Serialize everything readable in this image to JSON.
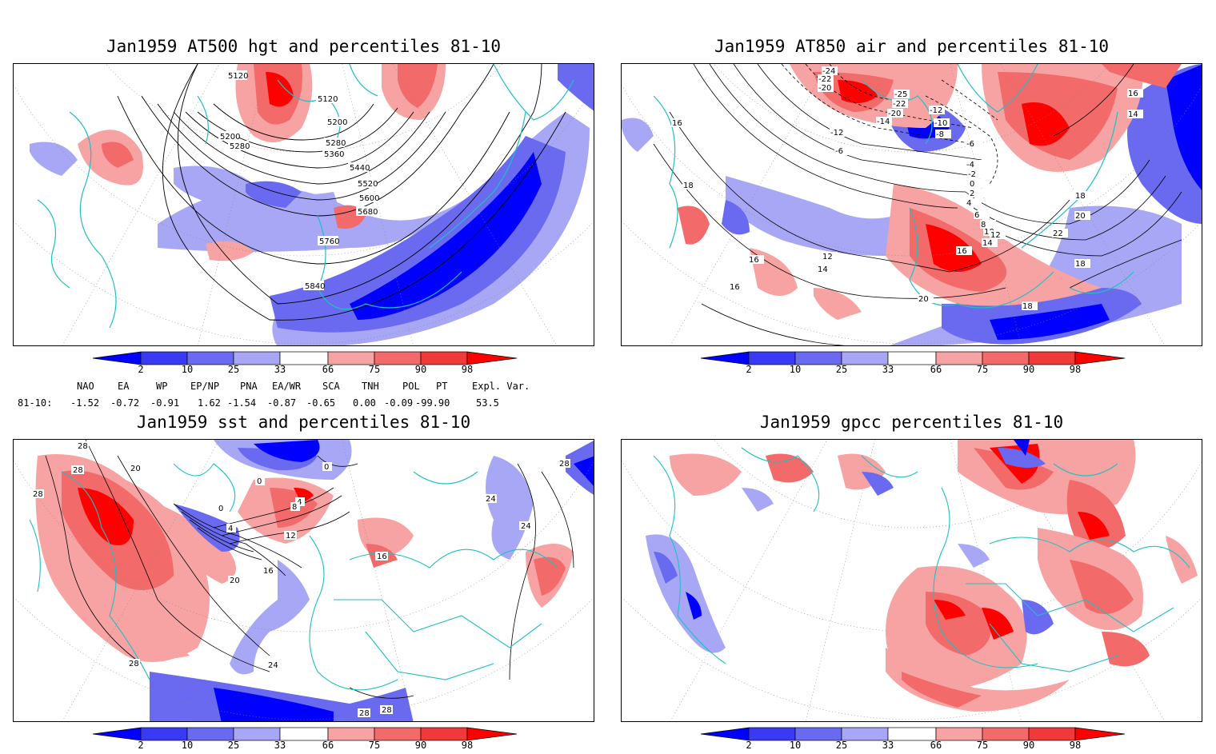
{
  "panels": {
    "hgt": {
      "title": "Jan1959 AT500 hgt and percentiles 81-10",
      "contour_labels": [
        "5120",
        "5120",
        "5200",
        "5200",
        "5280",
        "5280",
        "5360",
        "5440",
        "5520",
        "5600",
        "5680",
        "5760",
        "5840"
      ]
    },
    "air": {
      "title": "Jan1959 AT850 air and percentiles 81-10",
      "contour_labels": [
        "-24",
        "-22",
        "-20",
        "-25",
        "-22",
        "-20",
        "-14",
        "-12",
        "-12",
        "-10",
        "-8",
        "-6",
        "-6",
        "-4",
        "-2",
        "0",
        "2",
        "4",
        "6",
        "8",
        "10",
        "12",
        "12",
        "14",
        "14",
        "16",
        "16",
        "16",
        "16",
        "18",
        "18",
        "18",
        "20",
        "20",
        "22",
        "14",
        "16",
        "18"
      ]
    },
    "sst": {
      "title": "Jan1959 sst and percentiles 81-10",
      "contour_labels": [
        "28",
        "28",
        "28",
        "20",
        "0",
        "0",
        "0",
        "4",
        "4",
        "8",
        "12",
        "16",
        "16",
        "20",
        "24",
        "28",
        "28",
        "24",
        "24",
        "28",
        "28"
      ]
    },
    "gpcc": {
      "title": "Jan1959 gpcc percentiles 81-10"
    }
  },
  "colorbar": {
    "labels": [
      "2",
      "10",
      "25",
      "33",
      "66",
      "75",
      "90",
      "98"
    ],
    "colors": [
      "#0000ff",
      "#3a3af5",
      "#6a6af0",
      "#a7a7f5",
      "#ffffff",
      "#f7a3a3",
      "#f26a6a",
      "#f03a3a",
      "#ff0000"
    ]
  },
  "indices": {
    "headers": [
      "NAO",
      "EA",
      "WP",
      "EP/NP",
      "PNA",
      "EA/WR",
      "SCA",
      "TNH",
      "POL",
      "PT",
      "Expl. Var."
    ],
    "row_label": "81-10:",
    "values": [
      "-1.52",
      "-0.72",
      "-0.91",
      "1.62",
      "-1.54",
      "-0.87",
      "-0.65",
      "0.00",
      "-0.09",
      "-99.90",
      "53.5"
    ]
  },
  "colors": {
    "coast": "#20c0c0",
    "blue": "#0000ff",
    "red": "#ff0000",
    "contour": "#000000"
  }
}
